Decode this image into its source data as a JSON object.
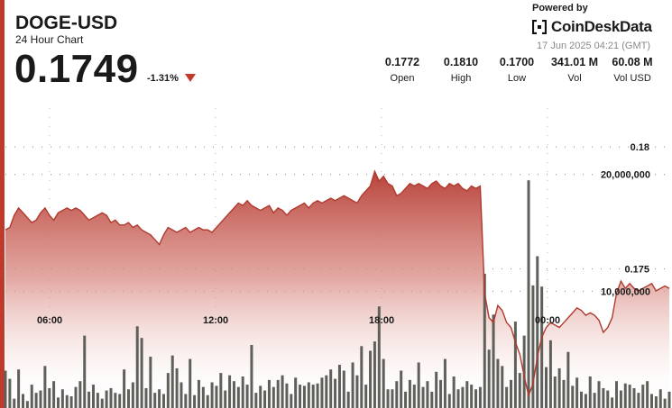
{
  "header": {
    "symbol": "DOGE-USD",
    "subtitle": "24 Hour Chart",
    "price": "0.1749",
    "change": "-1.31%",
    "change_icon": "down-triangle-icon"
  },
  "stats": [
    {
      "value": "0.1772",
      "label": "Open"
    },
    {
      "value": "0.1810",
      "label": "High"
    },
    {
      "value": "0.1700",
      "label": "Low"
    },
    {
      "value": "341.01 M",
      "label": "Vol"
    },
    {
      "value": "60.08 M",
      "label": "Vol USD"
    }
  ],
  "branding": {
    "powered_by": "Powered by",
    "name": "CoinDeskData",
    "timestamp": "17 Jun 2025 04:21 (GMT)"
  },
  "colors": {
    "accent": "#c0392b",
    "line": "#b03a2e",
    "volume_bar": "#5f605a"
  },
  "chart_data": {
    "type": "area",
    "title": "DOGE-USD",
    "subtitle": "24 Hour Chart",
    "price_axis_labels": [
      "0.18",
      "0.175"
    ],
    "volume_axis_labels": [
      "20,000,000",
      "10,000,000"
    ],
    "x_tick_labels": [
      "06:00",
      "12:00",
      "18:00",
      "00:00"
    ],
    "x_tick_hours": [
      6,
      12,
      18,
      24
    ],
    "x_range_hours": [
      4.4,
      28.4
    ],
    "price_ylim": [
      0.1693,
      0.1827
    ],
    "volume_ylim": [
      0,
      28000000
    ],
    "price_series": [
      0.1766,
      0.1767,
      0.1772,
      0.1775,
      0.1773,
      0.1771,
      0.1769,
      0.177,
      0.1773,
      0.1775,
      0.1772,
      0.177,
      0.1773,
      0.1774,
      0.1775,
      0.1774,
      0.1775,
      0.1774,
      0.1772,
      0.177,
      0.1771,
      0.1772,
      0.1773,
      0.1772,
      0.1769,
      0.177,
      0.1768,
      0.1768,
      0.1769,
      0.1767,
      0.1768,
      0.1766,
      0.1765,
      0.1764,
      0.1762,
      0.176,
      0.1764,
      0.1767,
      0.1766,
      0.1765,
      0.1766,
      0.1767,
      0.1765,
      0.1766,
      0.1767,
      0.1766,
      0.1766,
      0.1765,
      0.1767,
      0.1769,
      0.1771,
      0.1773,
      0.1775,
      0.1777,
      0.1776,
      0.1778,
      0.1776,
      0.1775,
      0.1774,
      0.1775,
      0.1776,
      0.1773,
      0.1775,
      0.1774,
      0.1772,
      0.1774,
      0.1775,
      0.1776,
      0.1777,
      0.1775,
      0.1777,
      0.1778,
      0.1777,
      0.1778,
      0.1779,
      0.1778,
      0.1779,
      0.178,
      0.1779,
      0.1778,
      0.1777,
      0.178,
      0.1782,
      0.1784,
      0.179,
      0.1786,
      0.1788,
      0.1785,
      0.1784,
      0.178,
      0.1781,
      0.1783,
      0.1785,
      0.1784,
      0.1785,
      0.1784,
      0.1783,
      0.1785,
      0.1786,
      0.1784,
      0.1783,
      0.1785,
      0.1784,
      0.1785,
      0.1783,
      0.1782,
      0.1784,
      0.1783,
      0.1784,
      0.174,
      0.173,
      0.1728,
      0.1735,
      0.1733,
      0.1728,
      0.1726,
      0.172,
      0.1715,
      0.1706,
      0.1698,
      0.1703,
      0.1714,
      0.1722,
      0.1726,
      0.1728,
      0.1727,
      0.1726,
      0.1728,
      0.173,
      0.1732,
      0.1734,
      0.1733,
      0.1731,
      0.1732,
      0.1731,
      0.1729,
      0.1724,
      0.1726,
      0.173,
      0.174,
      0.1745,
      0.1742,
      0.1744,
      0.1742,
      0.1741,
      0.1742,
      0.1743,
      0.1744,
      0.1741,
      0.1742,
      0.1743,
      0.1742
    ],
    "volume_series": [
      3200000,
      2500000,
      800000,
      3300000,
      1200000,
      600000,
      2000000,
      1300000,
      1500000,
      3600000,
      1700000,
      2300000,
      900000,
      1600000,
      1100000,
      1000000,
      1800000,
      2300000,
      6200000,
      1400000,
      2000000,
      1300000,
      800000,
      1500000,
      1700000,
      1300000,
      1200000,
      3300000,
      1600000,
      2200000,
      7000000,
      6000000,
      1700000,
      4400000,
      1300000,
      1600000,
      1200000,
      3000000,
      4500000,
      3400000,
      2200000,
      1200000,
      4200000,
      1100000,
      2400000,
      1800000,
      1100000,
      2200000,
      1900000,
      3000000,
      1500000,
      2800000,
      2300000,
      1800000,
      2700000,
      2000000,
      5400000,
      1300000,
      1900000,
      1500000,
      2400000,
      1800000,
      2400000,
      2800000,
      2100000,
      1200000,
      2600000,
      2000000,
      1900000,
      2200000,
      2000000,
      2100000,
      2600000,
      2800000,
      3300000,
      2500000,
      3700000,
      3200000,
      1400000,
      3900000,
      2800000,
      5300000,
      2000000,
      4900000,
      5700000,
      8700000,
      4200000,
      1600000,
      1600000,
      2300000,
      3200000,
      1400000,
      2400000,
      2000000,
      3900000,
      1800000,
      2300000,
      1400000,
      3100000,
      2400000,
      4200000,
      1200000,
      2700000,
      1600000,
      1800000,
      2300000,
      2000000,
      1600000,
      1800000,
      11500000,
      5000000,
      8000000,
      4200000,
      3600000,
      1800000,
      2400000,
      7400000,
      3000000,
      6200000,
      19500000,
      10500000,
      13000000,
      10400000,
      3500000,
      5800000,
      2700000,
      3400000,
      2400000,
      4800000,
      1900000,
      2600000,
      1400000,
      1200000,
      2700000,
      1300000,
      2300000,
      1700000,
      1500000,
      900000,
      2300000,
      1500000,
      2100000,
      2000000,
      1700000,
      1300000,
      2000000,
      2300000,
      1200000,
      1000000,
      1600000,
      800000,
      1400000
    ]
  }
}
